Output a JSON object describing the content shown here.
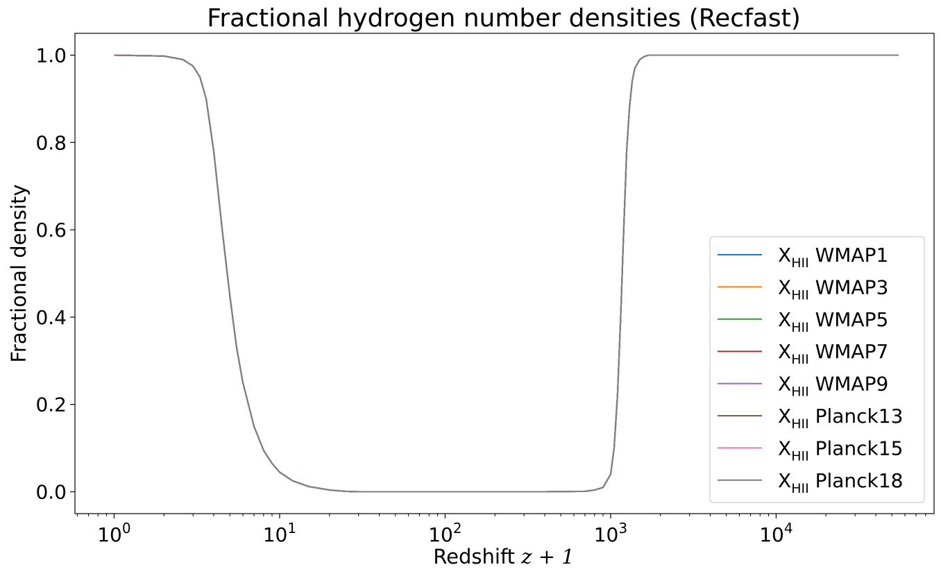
{
  "chart_data": {
    "type": "line",
    "title": "Fractional hydrogen number densities (Recfast)",
    "xlabel_text": "Redshift ",
    "xlabel_math": "z + 1",
    "ylabel": "Fractional density",
    "xscale": "log",
    "xlim": [
      0.58,
      90000
    ],
    "ylim": [
      -0.05,
      1.05
    ],
    "x_ticks": [
      {
        "value": 1,
        "base": "10",
        "exp": "0"
      },
      {
        "value": 10,
        "base": "10",
        "exp": "1"
      },
      {
        "value": 100,
        "base": "10",
        "exp": "2"
      },
      {
        "value": 1000,
        "base": "10",
        "exp": "3"
      },
      {
        "value": 10000,
        "base": "10",
        "exp": "4"
      }
    ],
    "y_ticks": [
      {
        "value": 0.0,
        "label": "0.0"
      },
      {
        "value": 0.2,
        "label": "0.2"
      },
      {
        "value": 0.4,
        "label": "0.4"
      },
      {
        "value": 0.6,
        "label": "0.6"
      },
      {
        "value": 0.8,
        "label": "0.8"
      },
      {
        "value": 1.0,
        "label": "1.0"
      }
    ],
    "legend_position": "lower-right",
    "grid": false,
    "x": [
      1,
      2,
      2.6,
      3,
      3.3,
      3.6,
      4,
      4.5,
      5,
      5.5,
      6,
      7,
      8,
      9,
      10,
      12,
      15,
      20,
      25,
      30,
      100,
      400,
      700,
      800,
      900,
      1000,
      1050,
      1100,
      1150,
      1200,
      1250,
      1300,
      1350,
      1400,
      1500,
      1600,
      1700,
      2000,
      5000,
      10000,
      55000
    ],
    "y": [
      1.0,
      0.998,
      0.99,
      0.975,
      0.95,
      0.9,
      0.78,
      0.6,
      0.45,
      0.33,
      0.25,
      0.15,
      0.095,
      0.065,
      0.045,
      0.025,
      0.012,
      0.004,
      0.001,
      0.0,
      0.0,
      0.0,
      0.001,
      0.004,
      0.01,
      0.04,
      0.1,
      0.22,
      0.4,
      0.6,
      0.78,
      0.88,
      0.94,
      0.97,
      0.99,
      0.997,
      1.0,
      1.0,
      1.0,
      1.0,
      1.0
    ],
    "series": [
      {
        "name_base": "X",
        "name_sub": "HII",
        "name_rest": " WMAP1",
        "color": "#1f77b4"
      },
      {
        "name_base": "X",
        "name_sub": "HII",
        "name_rest": " WMAP3",
        "color": "#ff7f0e"
      },
      {
        "name_base": "X",
        "name_sub": "HII",
        "name_rest": " WMAP5",
        "color": "#2ca02c"
      },
      {
        "name_base": "X",
        "name_sub": "HII",
        "name_rest": " WMAP7",
        "color": "#d62728"
      },
      {
        "name_base": "X",
        "name_sub": "HII",
        "name_rest": " WMAP9",
        "color": "#9467bd"
      },
      {
        "name_base": "X",
        "name_sub": "HII",
        "name_rest": " Planck13",
        "color": "#8c564b"
      },
      {
        "name_base": "X",
        "name_sub": "HII",
        "name_rest": " Planck15",
        "color": "#e377c2"
      },
      {
        "name_base": "X",
        "name_sub": "HII",
        "name_rest": " Planck18",
        "color": "#7f7f7f"
      }
    ]
  }
}
